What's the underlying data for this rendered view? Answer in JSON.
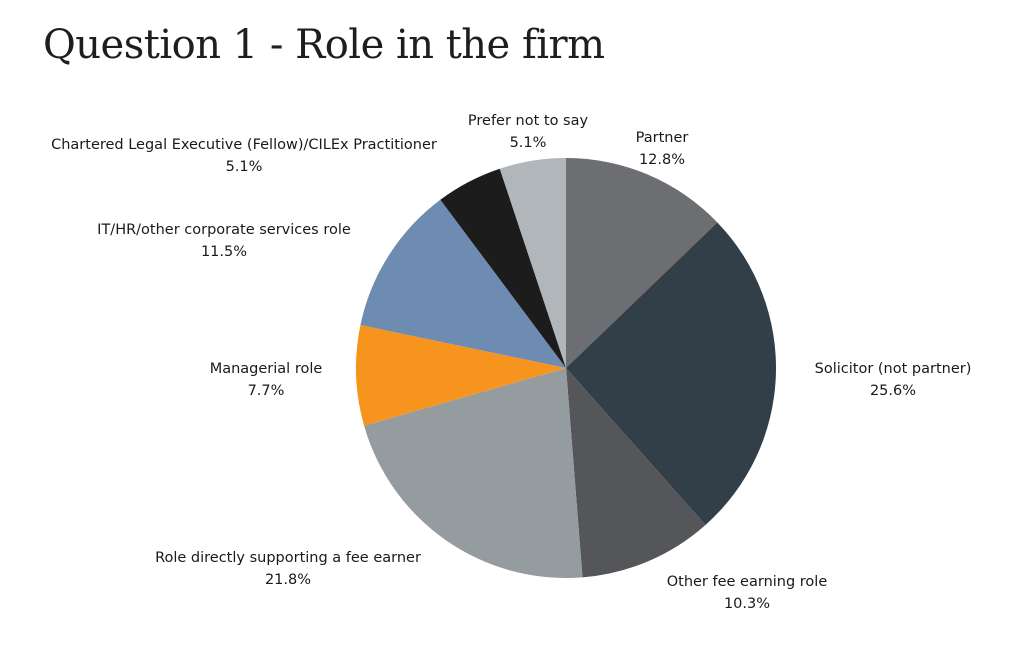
{
  "chart_data": {
    "type": "pie",
    "title": "Question 1 - Role in the firm",
    "start_angle": "12 o'clock",
    "direction": "clockwise",
    "slices": [
      {
        "label": "Partner",
        "value": 12.8,
        "value_label": "12.8%",
        "color": "#6d6e71"
      },
      {
        "label": "Solicitor (not partner)",
        "value": 25.6,
        "value_label": "25.6%",
        "color": "#323e48"
      },
      {
        "label": "Other fee earning role",
        "value": 10.3,
        "value_label": "10.3%",
        "color": "#555659"
      },
      {
        "label": "Role directly supporting a fee earner",
        "value": 21.8,
        "value_label": "21.8%",
        "color": "#959c9f"
      },
      {
        "label": "Managerial role",
        "value": 7.7,
        "value_label": "7.7%",
        "color": "#f7941e"
      },
      {
        "label": "IT/HR/other corporate services role",
        "value": 11.5,
        "value_label": "11.5%",
        "color": "#6e8cb1"
      },
      {
        "label": "Chartered Legal Executive (Fellow)/CILEx Practitioner",
        "value": 5.1,
        "value_label": "5.1%",
        "color": "#1c1c1c"
      },
      {
        "label": "Prefer not to say",
        "value": 5.1,
        "value_label": "5.1%",
        "color": "#b0b6b9"
      }
    ]
  }
}
